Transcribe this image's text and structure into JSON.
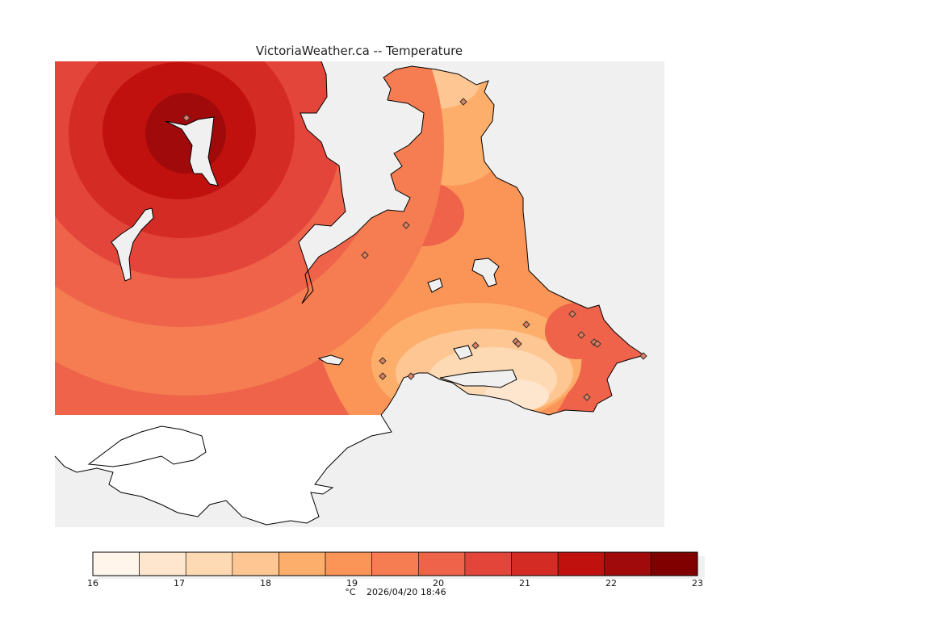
{
  "title": "VictoriaWeather.ca -- Temperature",
  "legend": {
    "ticks": [
      "16",
      "17",
      "18",
      "19",
      "20",
      "21",
      "22",
      "23"
    ],
    "colors": [
      "#fff5eb",
      "#fee6ce",
      "#fdd9b4",
      "#fdc692",
      "#fdae6b",
      "#fa9457",
      "#f57d51",
      "#ee634a",
      "#e3453a",
      "#d42c25",
      "#c1110f",
      "#a00a0a",
      "#800000"
    ]
  },
  "footer": {
    "unit": "°C",
    "timestamp": "2026/04/20 18:46"
  }
}
